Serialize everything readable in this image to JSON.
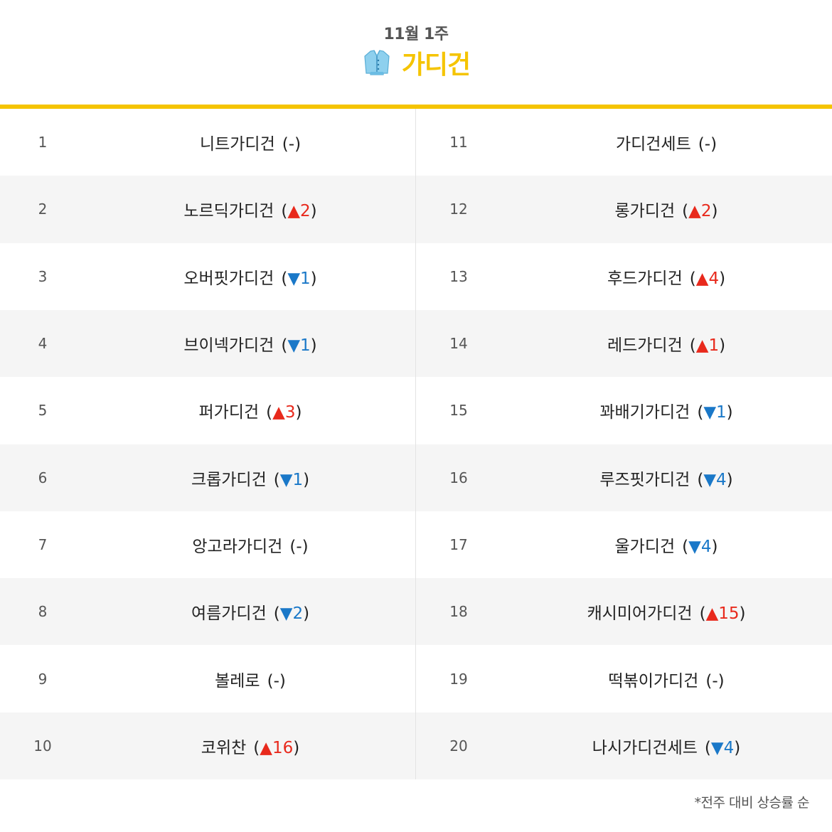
{
  "header": {
    "week": "11월 1주",
    "title": "가디건",
    "icon": "cardigan-icon",
    "accent_color": "#f5c400"
  },
  "rankings": [
    {
      "rank": "1",
      "keyword": "니트가디건",
      "dir": "same",
      "symbol": "",
      "change": "-"
    },
    {
      "rank": "2",
      "keyword": "노르딕가디건",
      "dir": "up",
      "symbol": "▲",
      "change": "2"
    },
    {
      "rank": "3",
      "keyword": "오버핏가디건",
      "dir": "down",
      "symbol": "▼",
      "change": "1"
    },
    {
      "rank": "4",
      "keyword": "브이넥가디건",
      "dir": "down",
      "symbol": "▼",
      "change": "1"
    },
    {
      "rank": "5",
      "keyword": "퍼가디건",
      "dir": "up",
      "symbol": "▲",
      "change": "3"
    },
    {
      "rank": "6",
      "keyword": "크롭가디건",
      "dir": "down",
      "symbol": "▼",
      "change": "1"
    },
    {
      "rank": "7",
      "keyword": "앙고라가디건",
      "dir": "same",
      "symbol": "",
      "change": "-"
    },
    {
      "rank": "8",
      "keyword": "여름가디건",
      "dir": "down",
      "symbol": "▼",
      "change": "2"
    },
    {
      "rank": "9",
      "keyword": "볼레로",
      "dir": "same",
      "symbol": "",
      "change": "-"
    },
    {
      "rank": "10",
      "keyword": "코위찬",
      "dir": "up",
      "symbol": "▲",
      "change": "16"
    },
    {
      "rank": "11",
      "keyword": "가디건세트",
      "dir": "same",
      "symbol": "",
      "change": "-"
    },
    {
      "rank": "12",
      "keyword": "롱가디건",
      "dir": "up",
      "symbol": "▲",
      "change": "2"
    },
    {
      "rank": "13",
      "keyword": "후드가디건",
      "dir": "up",
      "symbol": "▲",
      "change": "4"
    },
    {
      "rank": "14",
      "keyword": "레드가디건",
      "dir": "up",
      "symbol": "▲",
      "change": "1"
    },
    {
      "rank": "15",
      "keyword": "꽈배기가디건",
      "dir": "down",
      "symbol": "▼",
      "change": "1"
    },
    {
      "rank": "16",
      "keyword": "루즈핏가디건",
      "dir": "down",
      "symbol": "▼",
      "change": "4"
    },
    {
      "rank": "17",
      "keyword": "울가디건",
      "dir": "down",
      "symbol": "▼",
      "change": "4"
    },
    {
      "rank": "18",
      "keyword": "캐시미어가디건",
      "dir": "up",
      "symbol": "▲",
      "change": "15"
    },
    {
      "rank": "19",
      "keyword": "떡볶이가디건",
      "dir": "same",
      "symbol": "",
      "change": "-"
    },
    {
      "rank": "20",
      "keyword": "나시가디건세트",
      "dir": "down",
      "symbol": "▼",
      "change": "4"
    }
  ],
  "footnote": "*전주 대비 상승률 순",
  "colors": {
    "up": "#e8291c",
    "down": "#1a78c8",
    "row_alt": "#f5f5f5"
  }
}
